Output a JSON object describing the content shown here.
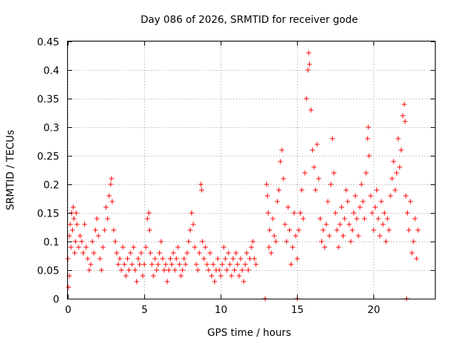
{
  "chart_data": {
    "type": "scatter",
    "title": "Day 086 of 2026, SRMTID for receiver gode",
    "xlabel": "GPS time / hours",
    "ylabel": "SRMTID / TECUs",
    "xlim": [
      0,
      24
    ],
    "ylim": [
      0,
      0.45
    ],
    "xticks": [
      0,
      5,
      10,
      15,
      20
    ],
    "xtick_labels": [
      "0",
      "5",
      "10",
      "15",
      "20"
    ],
    "yticks": [
      0,
      0.05,
      0.1,
      0.15,
      0.2,
      0.25,
      0.3,
      0.35,
      0.4,
      0.45
    ],
    "ytick_labels": [
      "0",
      "0.05",
      "0.1",
      "0.15",
      "0.2",
      "0.25",
      "0.3",
      "0.35",
      "0.4",
      "0.45"
    ],
    "grid": true,
    "marker": "+",
    "marker_color": "#ff0000",
    "series": [
      {
        "name": "SRMTID",
        "points": [
          [
            0.0,
            0.07
          ],
          [
            0.05,
            0.02
          ],
          [
            0.1,
            0.04
          ],
          [
            0.1,
            0.11
          ],
          [
            0.15,
            0.13
          ],
          [
            0.2,
            0.09
          ],
          [
            0.25,
            0.15
          ],
          [
            0.3,
            0.12
          ],
          [
            0.35,
            0.16
          ],
          [
            0.4,
            0.14
          ],
          [
            0.45,
            0.08
          ],
          [
            0.5,
            0.1
          ],
          [
            0.55,
            0.15
          ],
          [
            0.6,
            0.13
          ],
          [
            0.7,
            0.09
          ],
          [
            0.8,
            0.11
          ],
          [
            0.9,
            0.1
          ],
          [
            1.0,
            0.08
          ],
          [
            1.1,
            0.13
          ],
          [
            1.2,
            0.09
          ],
          [
            1.3,
            0.07
          ],
          [
            1.4,
            0.05
          ],
          [
            1.5,
            0.06
          ],
          [
            1.6,
            0.1
          ],
          [
            1.7,
            0.08
          ],
          [
            1.8,
            0.12
          ],
          [
            1.9,
            0.14
          ],
          [
            2.0,
            0.11
          ],
          [
            2.1,
            0.07
          ],
          [
            2.2,
            0.05
          ],
          [
            2.3,
            0.09
          ],
          [
            2.4,
            0.12
          ],
          [
            2.5,
            0.16
          ],
          [
            2.6,
            0.14
          ],
          [
            2.7,
            0.18
          ],
          [
            2.8,
            0.2
          ],
          [
            2.85,
            0.21
          ],
          [
            2.9,
            0.17
          ],
          [
            3.0,
            0.12
          ],
          [
            3.1,
            0.1
          ],
          [
            3.2,
            0.08
          ],
          [
            3.3,
            0.06
          ],
          [
            3.4,
            0.07
          ],
          [
            3.5,
            0.05
          ],
          [
            3.6,
            0.09
          ],
          [
            3.7,
            0.06
          ],
          [
            3.8,
            0.04
          ],
          [
            3.9,
            0.07
          ],
          [
            4.0,
            0.05
          ],
          [
            4.1,
            0.08
          ],
          [
            4.2,
            0.06
          ],
          [
            4.3,
            0.09
          ],
          [
            4.4,
            0.05
          ],
          [
            4.5,
            0.03
          ],
          [
            4.6,
            0.07
          ],
          [
            4.7,
            0.06
          ],
          [
            4.8,
            0.08
          ],
          [
            4.9,
            0.04
          ],
          [
            5.0,
            0.06
          ],
          [
            5.1,
            0.09
          ],
          [
            5.2,
            0.14
          ],
          [
            5.3,
            0.15
          ],
          [
            5.35,
            0.12
          ],
          [
            5.4,
            0.08
          ],
          [
            5.5,
            0.06
          ],
          [
            5.6,
            0.04
          ],
          [
            5.7,
            0.07
          ],
          [
            5.8,
            0.05
          ],
          [
            5.9,
            0.06
          ],
          [
            6.0,
            0.08
          ],
          [
            6.1,
            0.1
          ],
          [
            6.2,
            0.07
          ],
          [
            6.3,
            0.05
          ],
          [
            6.4,
            0.06
          ],
          [
            6.5,
            0.03
          ],
          [
            6.6,
            0.05
          ],
          [
            6.7,
            0.07
          ],
          [
            6.8,
            0.06
          ],
          [
            6.9,
            0.08
          ],
          [
            7.0,
            0.05
          ],
          [
            7.1,
            0.07
          ],
          [
            7.2,
            0.09
          ],
          [
            7.3,
            0.06
          ],
          [
            7.4,
            0.04
          ],
          [
            7.5,
            0.05
          ],
          [
            7.6,
            0.07
          ],
          [
            7.7,
            0.06
          ],
          [
            7.8,
            0.08
          ],
          [
            7.9,
            0.1
          ],
          [
            8.0,
            0.12
          ],
          [
            8.1,
            0.15
          ],
          [
            8.2,
            0.13
          ],
          [
            8.3,
            0.09
          ],
          [
            8.4,
            0.06
          ],
          [
            8.5,
            0.05
          ],
          [
            8.6,
            0.08
          ],
          [
            8.7,
            0.2
          ],
          [
            8.75,
            0.19
          ],
          [
            8.8,
            0.1
          ],
          [
            8.9,
            0.07
          ],
          [
            9.0,
            0.09
          ],
          [
            9.1,
            0.06
          ],
          [
            9.2,
            0.05
          ],
          [
            9.3,
            0.08
          ],
          [
            9.4,
            0.04
          ],
          [
            9.5,
            0.06
          ],
          [
            9.6,
            0.03
          ],
          [
            9.7,
            0.05
          ],
          [
            9.8,
            0.07
          ],
          [
            9.9,
            0.05
          ],
          [
            10.0,
            0.04
          ],
          [
            10.1,
            0.06
          ],
          [
            10.2,
            0.09
          ],
          [
            10.3,
            0.07
          ],
          [
            10.4,
            0.05
          ],
          [
            10.5,
            0.08
          ],
          [
            10.6,
            0.06
          ],
          [
            10.7,
            0.04
          ],
          [
            10.8,
            0.07
          ],
          [
            10.9,
            0.05
          ],
          [
            11.0,
            0.08
          ],
          [
            11.1,
            0.06
          ],
          [
            11.2,
            0.04
          ],
          [
            11.3,
            0.07
          ],
          [
            11.4,
            0.05
          ],
          [
            11.5,
            0.03
          ],
          [
            11.6,
            0.06
          ],
          [
            11.7,
            0.08
          ],
          [
            11.8,
            0.05
          ],
          [
            11.9,
            0.07
          ],
          [
            12.0,
            0.09
          ],
          [
            12.1,
            0.1
          ],
          [
            12.2,
            0.07
          ],
          [
            12.3,
            0.06
          ],
          [
            12.9,
            0.0
          ],
          [
            13.0,
            0.2
          ],
          [
            13.05,
            0.18
          ],
          [
            13.1,
            0.15
          ],
          [
            13.15,
            0.09
          ],
          [
            13.2,
            0.12
          ],
          [
            13.3,
            0.08
          ],
          [
            13.4,
            0.14
          ],
          [
            13.5,
            0.11
          ],
          [
            13.6,
            0.1
          ],
          [
            13.7,
            0.17
          ],
          [
            13.8,
            0.19
          ],
          [
            13.9,
            0.24
          ],
          [
            14.0,
            0.26
          ],
          [
            14.1,
            0.21
          ],
          [
            14.2,
            0.13
          ],
          [
            14.3,
            0.1
          ],
          [
            14.4,
            0.16
          ],
          [
            14.5,
            0.12
          ],
          [
            14.6,
            0.06
          ],
          [
            14.7,
            0.09
          ],
          [
            14.8,
            0.15
          ],
          [
            14.9,
            0.11
          ],
          [
            15.0,
            0.07
          ],
          [
            15.0,
            0.0
          ],
          [
            15.1,
            0.12
          ],
          [
            15.2,
            0.15
          ],
          [
            15.3,
            0.19
          ],
          [
            15.4,
            0.14
          ],
          [
            15.5,
            0.22
          ],
          [
            15.6,
            0.35
          ],
          [
            15.7,
            0.4
          ],
          [
            15.75,
            0.43
          ],
          [
            15.8,
            0.41
          ],
          [
            15.9,
            0.33
          ],
          [
            16.0,
            0.26
          ],
          [
            16.1,
            0.23
          ],
          [
            16.2,
            0.19
          ],
          [
            16.3,
            0.27
          ],
          [
            16.4,
            0.21
          ],
          [
            16.5,
            0.14
          ],
          [
            16.6,
            0.1
          ],
          [
            16.7,
            0.12
          ],
          [
            16.8,
            0.09
          ],
          [
            16.9,
            0.13
          ],
          [
            17.0,
            0.17
          ],
          [
            17.1,
            0.11
          ],
          [
            17.2,
            0.2
          ],
          [
            17.3,
            0.28
          ],
          [
            17.4,
            0.22
          ],
          [
            17.5,
            0.15
          ],
          [
            17.6,
            0.12
          ],
          [
            17.7,
            0.09
          ],
          [
            17.8,
            0.13
          ],
          [
            17.9,
            0.16
          ],
          [
            18.0,
            0.11
          ],
          [
            18.1,
            0.14
          ],
          [
            18.2,
            0.19
          ],
          [
            18.3,
            0.17
          ],
          [
            18.4,
            0.13
          ],
          [
            18.5,
            0.1
          ],
          [
            18.6,
            0.12
          ],
          [
            18.7,
            0.15
          ],
          [
            18.8,
            0.18
          ],
          [
            18.9,
            0.14
          ],
          [
            19.0,
            0.11
          ],
          [
            19.1,
            0.16
          ],
          [
            19.2,
            0.2
          ],
          [
            19.3,
            0.17
          ],
          [
            19.4,
            0.14
          ],
          [
            19.5,
            0.22
          ],
          [
            19.6,
            0.28
          ],
          [
            19.65,
            0.3
          ],
          [
            19.7,
            0.25
          ],
          [
            19.8,
            0.18
          ],
          [
            19.9,
            0.15
          ],
          [
            20.0,
            0.12
          ],
          [
            20.1,
            0.16
          ],
          [
            20.2,
            0.19
          ],
          [
            20.3,
            0.14
          ],
          [
            20.4,
            0.11
          ],
          [
            20.5,
            0.17
          ],
          [
            20.6,
            0.13
          ],
          [
            20.7,
            0.15
          ],
          [
            20.8,
            0.1
          ],
          [
            20.9,
            0.14
          ],
          [
            21.0,
            0.12
          ],
          [
            21.1,
            0.18
          ],
          [
            21.2,
            0.21
          ],
          [
            21.3,
            0.24
          ],
          [
            21.4,
            0.19
          ],
          [
            21.5,
            0.22
          ],
          [
            21.6,
            0.28
          ],
          [
            21.7,
            0.23
          ],
          [
            21.8,
            0.26
          ],
          [
            21.9,
            0.32
          ],
          [
            22.0,
            0.34
          ],
          [
            22.05,
            0.31
          ],
          [
            22.1,
            0.18
          ],
          [
            22.15,
            0.0
          ],
          [
            22.2,
            0.15
          ],
          [
            22.3,
            0.12
          ],
          [
            22.4,
            0.17
          ],
          [
            22.5,
            0.08
          ],
          [
            22.6,
            0.1
          ],
          [
            22.7,
            0.14
          ],
          [
            22.8,
            0.07
          ],
          [
            22.9,
            0.12
          ]
        ]
      }
    ]
  }
}
